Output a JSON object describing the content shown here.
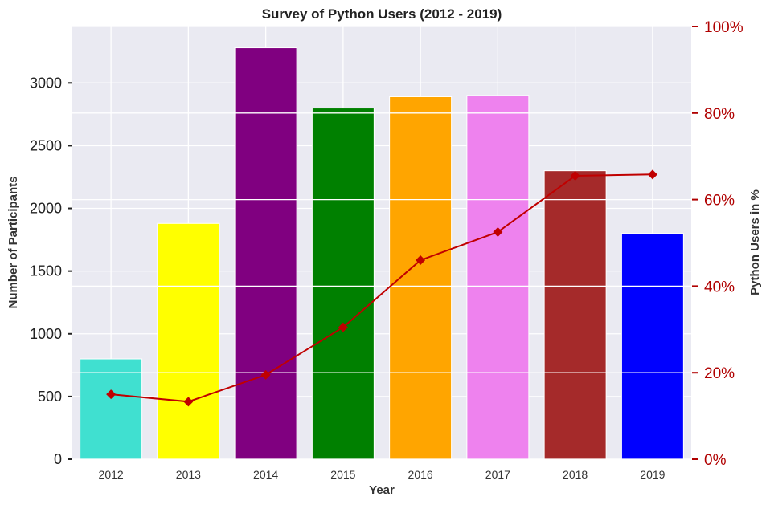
{
  "chart_data": {
    "type": "bar",
    "title": "Survey of Python Users (2012 - 2019)",
    "xlabel": "Year",
    "ylabel": "Number of Participants",
    "y2label": "Python Users in %",
    "categories": [
      "2012",
      "2013",
      "2014",
      "2015",
      "2016",
      "2017",
      "2018",
      "2019"
    ],
    "bar_colors": [
      "#40e0d0",
      "#ffff00",
      "#800080",
      "#008000",
      "#ffa500",
      "#ee82ee",
      "#a52a2a",
      "#0000ff"
    ],
    "series": [
      {
        "type": "bar",
        "axis": "left",
        "values": [
          800,
          1880,
          3280,
          2800,
          2890,
          2900,
          2300,
          1800
        ]
      },
      {
        "type": "line",
        "axis": "right",
        "color": "#c00000",
        "marker": "diamond",
        "values": [
          15,
          13.3,
          19.5,
          30.5,
          46,
          52.5,
          65.5,
          65.8
        ]
      }
    ],
    "y_ticks": [
      0,
      500,
      1000,
      1500,
      2000,
      2500,
      3000
    ],
    "y_tick_labels": [
      "0",
      "500",
      "1000",
      "1500",
      "2000",
      "2500",
      "3000"
    ],
    "ylim": [
      0,
      3450
    ],
    "y2_ticks": [
      0,
      20,
      40,
      60,
      80,
      100
    ],
    "y2_tick_labels": [
      "0%",
      "20%",
      "40%",
      "60%",
      "80%",
      "100%"
    ],
    "y2lim": [
      0,
      100
    ],
    "right_axis_color": "#b00000",
    "background": "#eaeaf2",
    "grid": true
  }
}
